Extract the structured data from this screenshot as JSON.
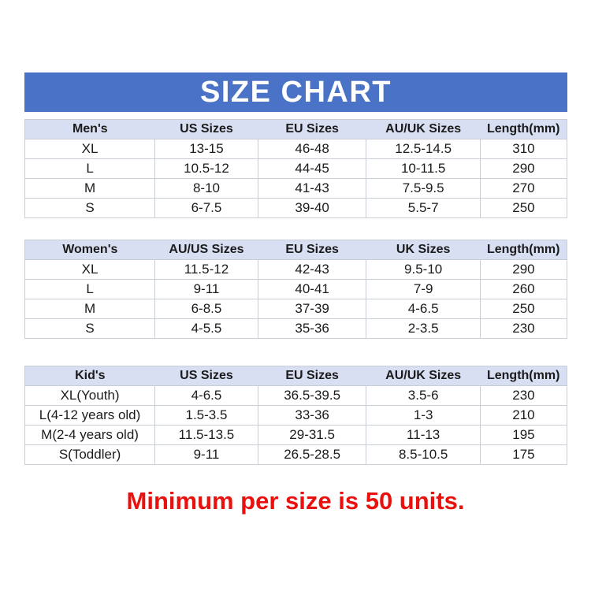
{
  "banner": {
    "title": "SIZE CHART"
  },
  "tables": [
    {
      "columns": [
        "Men's",
        "US Sizes",
        "EU Sizes",
        "AU/UK Sizes",
        "Length(mm)"
      ],
      "rows": [
        [
          "XL",
          "13-15",
          "46-48",
          "12.5-14.5",
          "310"
        ],
        [
          "L",
          "10.5-12",
          "44-45",
          "10-11.5",
          "290"
        ],
        [
          "M",
          "8-10",
          "41-43",
          "7.5-9.5",
          "270"
        ],
        [
          "S",
          "6-7.5",
          "39-40",
          "5.5-7",
          "250"
        ]
      ]
    },
    {
      "columns": [
        "Women's",
        "AU/US Sizes",
        "EU Sizes",
        "UK Sizes",
        "Length(mm)"
      ],
      "rows": [
        [
          "XL",
          "11.5-12",
          "42-43",
          "9.5-10",
          "290"
        ],
        [
          "L",
          "9-11",
          "40-41",
          "7-9",
          "260"
        ],
        [
          "M",
          "6-8.5",
          "37-39",
          "4-6.5",
          "250"
        ],
        [
          "S",
          "4-5.5",
          "35-36",
          "2-3.5",
          "230"
        ]
      ]
    },
    {
      "columns": [
        "Kid's",
        "US Sizes",
        "EU Sizes",
        "AU/UK Sizes",
        "Length(mm)"
      ],
      "rows": [
        [
          "XL(Youth)",
          "4-6.5",
          "36.5-39.5",
          "3.5-6",
          "230"
        ],
        [
          "L(4-12 years old)",
          "1.5-3.5",
          "33-36",
          "1-3",
          "210"
        ],
        [
          "M(2-4 years old)",
          "11.5-13.5",
          "29-31.5",
          "11-13",
          "195"
        ],
        [
          "S(Toddler)",
          "9-11",
          "26.5-28.5",
          "8.5-10.5",
          "175"
        ]
      ]
    }
  ],
  "footer": {
    "note": "Minimum per size is 50 units.",
    "color": "#E8110E"
  },
  "colors": {
    "banner_blue": "#4A73C7",
    "banner_text": "#ffffff",
    "header_row": "#D8DFF2",
    "border": "#C8CDD6",
    "text": "#1b1b1b"
  }
}
